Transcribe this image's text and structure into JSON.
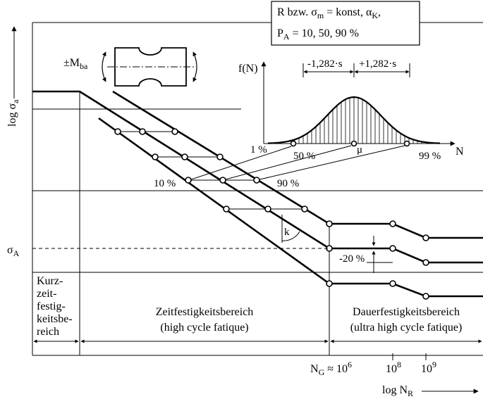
{
  "y_axis": {
    "prefix": "log σ",
    "sub": "a"
  },
  "x_axis": {
    "prefix": "log N",
    "sub": "R"
  },
  "legend_box": {
    "line1": {
      "a": "R bzw. σ",
      "a_sub": "m",
      "b": " = konst, α",
      "b_sub": "K",
      "c": ","
    },
    "line2": {
      "a": "P",
      "a_sub": "A",
      "b": " = 10, 50, 90 %"
    }
  },
  "specimen": {
    "label": "±M",
    "label_sub": "ba"
  },
  "distribution": {
    "axis_label": "f(N)",
    "x_label": "N",
    "minus_spread": "-1,282·s",
    "plus_spread": "+1,282·s",
    "mu": "μ",
    "p1": "1 %",
    "p50": "50 %",
    "p99": "99 %"
  },
  "curve_labels": {
    "p10": "10 %",
    "p90": "90 %"
  },
  "slope_label": "k",
  "sigma_label": {
    "a": "σ",
    "sub": "A"
  },
  "reduction_label": "-20 %",
  "regions": {
    "low_cycle": [
      "Kurz-",
      "zeit-",
      "festig-",
      "keitsbe-",
      "reich"
    ],
    "high_cycle": [
      "Zeitfestigkeitsbereich",
      "(high cycle fatique)"
    ],
    "ultra_high": [
      "Dauerfestigkeitsbereich",
      "(ultra high cycle fatique)"
    ]
  },
  "x_ticks": {
    "ng": "N",
    "ng_sub": "G",
    "ng_approx": " ≈ 10",
    "ng_exp": "6",
    "t8": "10",
    "t8_exp": "8",
    "t9": "10",
    "t9_exp": "9"
  }
}
